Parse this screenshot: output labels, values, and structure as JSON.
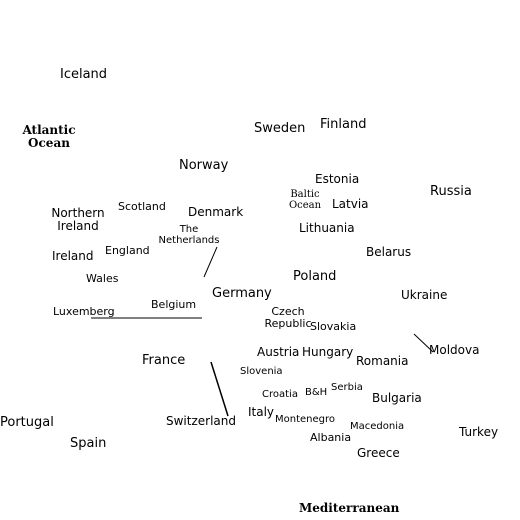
{
  "map": {
    "labels": {
      "iceland": "Iceland",
      "atlantic_ocean": "Atlantic Ocean",
      "sweden": "Sweden",
      "finland": "Finland",
      "norway": "Norway",
      "estonia": "Estonia",
      "russia": "Russia",
      "baltic_sea": "Baltic Ocean",
      "latvia": "Latvia",
      "northern_ireland": "Northern Ireland",
      "scotland": "Scotland",
      "denmark": "Denmark",
      "lithuania": "Lithuania",
      "the_netherlands": "The Netherlands",
      "ireland": "Ireland",
      "england": "England",
      "belarus": "Belarus",
      "wales": "Wales",
      "poland": "Poland",
      "germany": "Germany",
      "ukraine": "Ukraine",
      "belgium": "Belgium",
      "luxemberg": "Luxemberg",
      "czech_republic": "Czech Republic",
      "slovakia": "Slovakia",
      "moldova": "Moldova",
      "austria": "Austria",
      "hungary": "Hungary",
      "france": "France",
      "romania": "Romania",
      "slovenia": "Slovenia",
      "serbia": "Serbia",
      "croatia": "Croatia",
      "bh": "B&H",
      "bulgaria": "Bulgaria",
      "italy": "Italy",
      "portugal": "Portugal",
      "switzerland": "Switzerland",
      "montenegro": "Montenegro",
      "macedonia": "Macedonia",
      "turkey": "Turkey",
      "albania": "Albania",
      "spain": "Spain",
      "greece": "Greece",
      "mediterranean": "Mediterranean"
    },
    "line_color": "#000000",
    "text_color": "#000000",
    "background_color": "#ffffff"
  }
}
